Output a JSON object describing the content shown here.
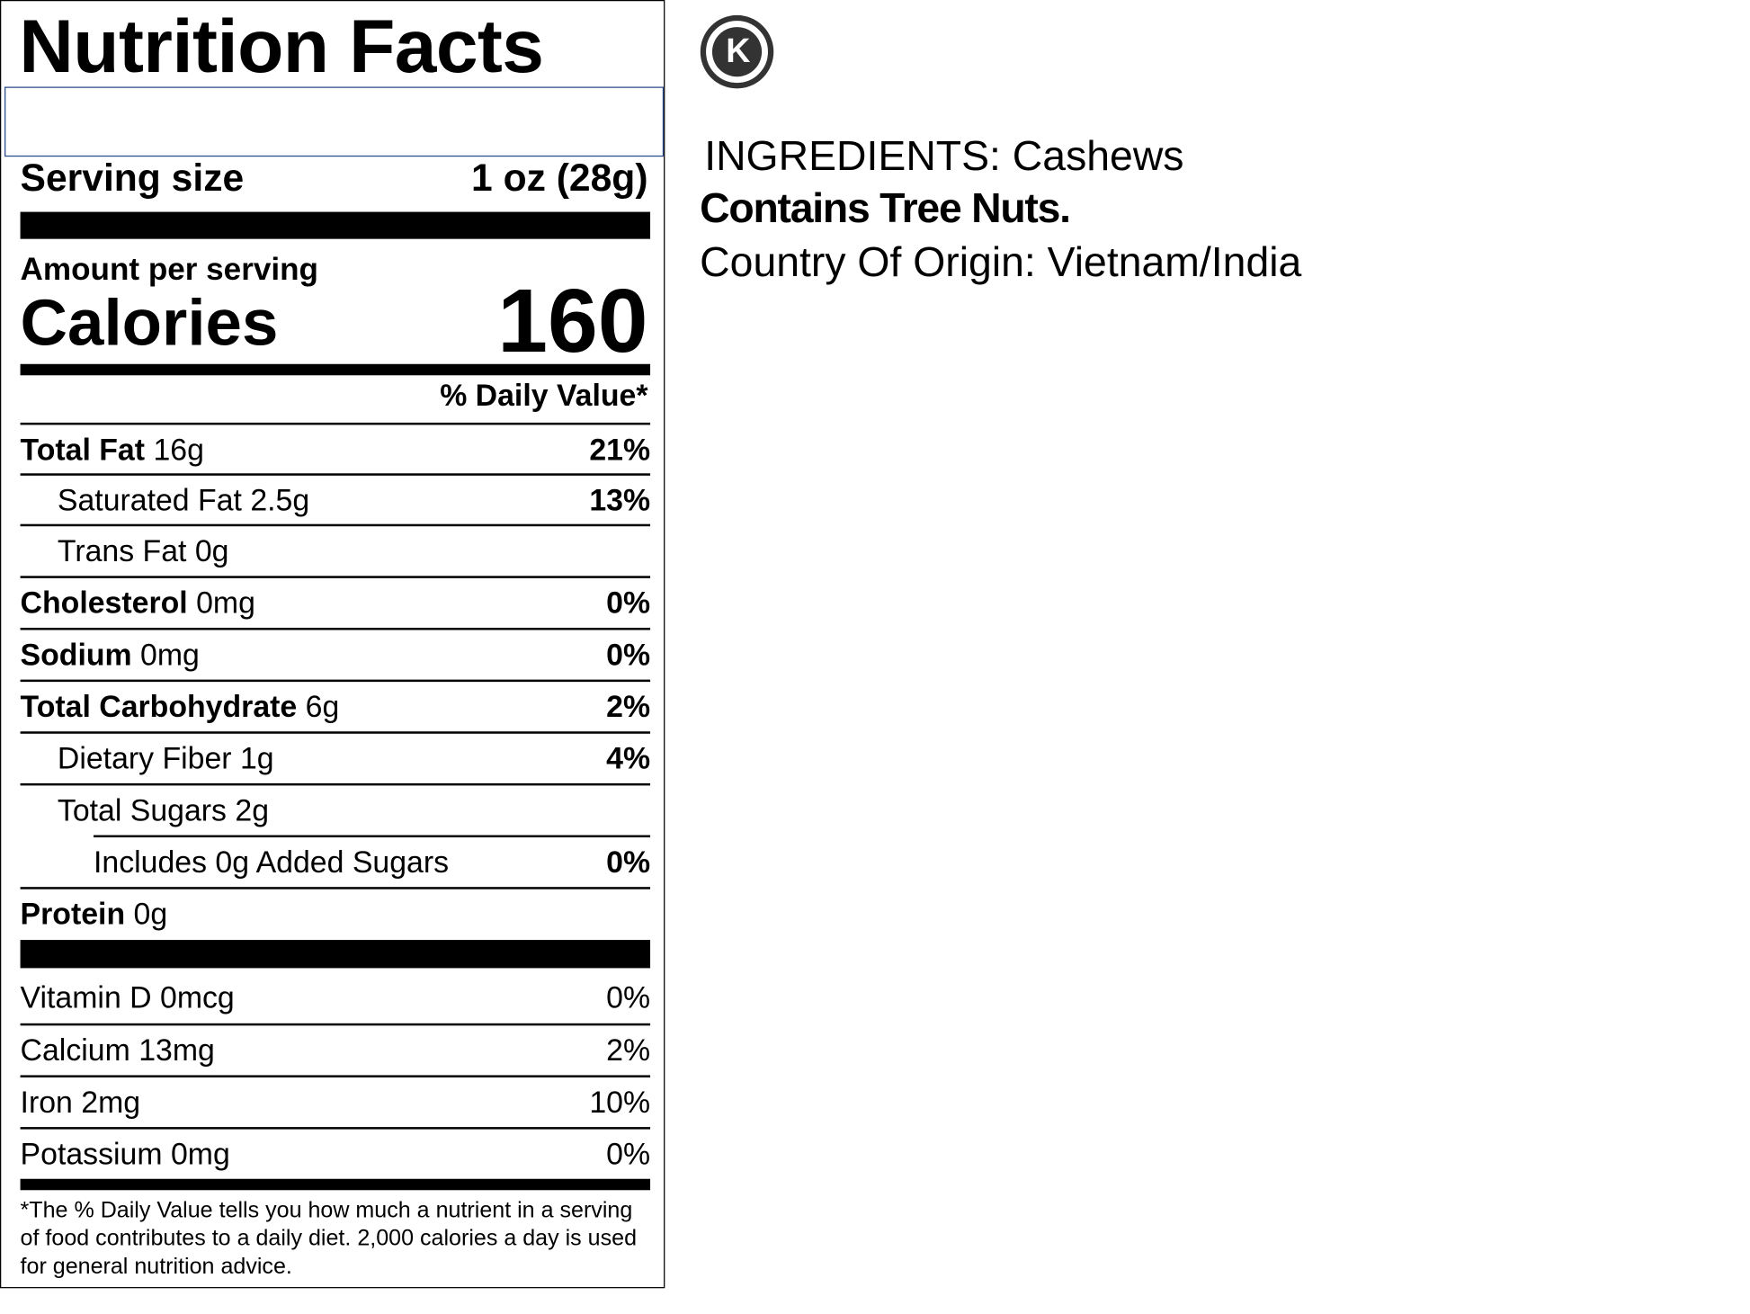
{
  "label": {
    "title": "Nutrition Facts",
    "serving_size": {
      "label": "Serving size",
      "value": "1 oz (28g)"
    },
    "amount_per_serving": "Amount per serving",
    "calories": {
      "label": "Calories",
      "value": "160"
    },
    "daily_value_header": "% Daily Value*",
    "nutrients": [
      {
        "name": "Total Fat",
        "amount": "16g",
        "dv": "21%"
      },
      {
        "name": "Saturated Fat",
        "amount": "2.5g",
        "dv": "13%"
      },
      {
        "name": "Trans Fat",
        "amount": "0g"
      },
      {
        "name": "Cholesterol",
        "amount": "0mg",
        "dv": "0%"
      },
      {
        "name": "Sodium",
        "amount": "0mg",
        "dv": "0%"
      },
      {
        "name": "Total Carbohydrate",
        "amount": "6g",
        "dv": "2%"
      },
      {
        "name": "Dietary Fiber",
        "amount": "1g",
        "dv": "4%"
      },
      {
        "name": "Total Sugars",
        "amount": "2g"
      },
      {
        "name": "Includes 0g Added Sugars",
        "dv": "0%"
      },
      {
        "name": "Protein",
        "amount": "0g"
      }
    ],
    "vitamins": [
      {
        "name": "Vitamin D",
        "amount": "0mcg",
        "dv": "0%"
      },
      {
        "name": "Calcium",
        "amount": "13mg",
        "dv": "2%"
      },
      {
        "name": "Iron",
        "amount": "2mg",
        "dv": "10%"
      },
      {
        "name": "Potassium",
        "amount": "0mg",
        "dv": "0%"
      }
    ],
    "footnote": "*The % Daily Value tells you how much a nutrient in a serving of food contributes to a daily diet. 2,000 calories a day is used for general nutrition advice."
  },
  "kosher_symbol": "K",
  "ingredients": "INGREDIENTS: Cashews",
  "allergens": "Contains Tree Nuts.",
  "origin": "Country Of Origin: Vietnam/India"
}
